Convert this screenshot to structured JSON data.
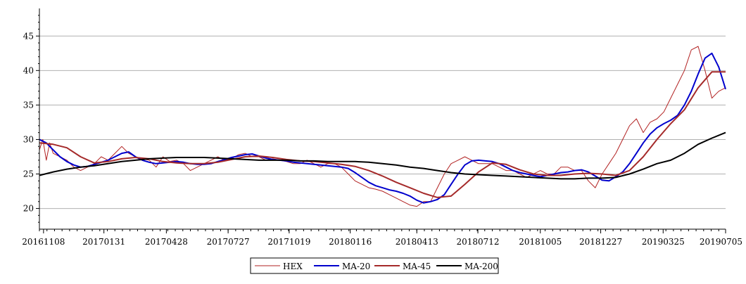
{
  "chart_data": {
    "type": "line",
    "title": "",
    "xlabel": "",
    "ylabel": "",
    "ylim": [
      17,
      49
    ],
    "yticks": [
      20,
      25,
      30,
      35,
      40,
      45
    ],
    "xlim": [
      0,
      100
    ],
    "xticks": [
      {
        "x": 0.6,
        "label": "20161108"
      },
      {
        "x": 9.4,
        "label": "20170131"
      },
      {
        "x": 18.5,
        "label": "20170428"
      },
      {
        "x": 27.5,
        "label": "20170727"
      },
      {
        "x": 36.4,
        "label": "20171019"
      },
      {
        "x": 45.3,
        "label": "20180116"
      },
      {
        "x": 55.0,
        "label": "20180413"
      },
      {
        "x": 63.9,
        "label": "20180712"
      },
      {
        "x": 73.0,
        "label": "20181005"
      },
      {
        "x": 81.8,
        "label": "20181227"
      },
      {
        "x": 90.9,
        "label": "20190325"
      },
      {
        "x": 100.0,
        "label": "20190705"
      }
    ],
    "grid": "horizontal",
    "legend_position": "bottom-center",
    "series": [
      {
        "name": "HEX",
        "color": "#b22222",
        "width": 1,
        "x": [
          0,
          0.5,
          1,
          1.5,
          2,
          3,
          4,
          5,
          6,
          7,
          8,
          9,
          10,
          11,
          12,
          13,
          14,
          15,
          16,
          17,
          18,
          19,
          20,
          21,
          22,
          23,
          24,
          25,
          26,
          27,
          28,
          29,
          30,
          31,
          32,
          33,
          34,
          35,
          36,
          37,
          38,
          39,
          40,
          41,
          42,
          43,
          44,
          45,
          46,
          47,
          48,
          49,
          50,
          51,
          52,
          53,
          54,
          55,
          56,
          57,
          58,
          59,
          60,
          61,
          62,
          63,
          64,
          65,
          66,
          67,
          68,
          69,
          70,
          71,
          72,
          73,
          74,
          75,
          76,
          77,
          78,
          79,
          80,
          81,
          82,
          83,
          84,
          85,
          86,
          87,
          88,
          89,
          90,
          91,
          92,
          93,
          94,
          95,
          96,
          97,
          98,
          99,
          100
        ],
        "values": [
          28.5,
          30,
          27,
          29.5,
          28,
          27.5,
          27,
          26,
          25.5,
          26,
          26.5,
          27.5,
          27,
          28,
          29,
          28,
          27.5,
          27.2,
          27,
          26,
          27.5,
          26.8,
          27,
          26.5,
          25.5,
          26,
          26.5,
          27,
          27.5,
          27,
          27.2,
          27.8,
          28,
          27.5,
          27.5,
          27,
          27.2,
          27,
          26.8,
          26.5,
          26.5,
          27,
          26.5,
          26,
          26.5,
          26.5,
          26,
          25,
          24,
          23.5,
          23,
          22.8,
          22.5,
          22,
          21.5,
          21,
          20.5,
          20.3,
          21,
          21,
          23,
          25,
          26.5,
          27,
          27.5,
          27,
          26.5,
          26.5,
          26.5,
          26,
          25.5,
          25.5,
          25,
          24.5,
          25,
          25.5,
          25,
          25,
          26,
          26,
          25.5,
          25.5,
          24,
          23,
          25,
          26.5,
          28,
          30,
          32,
          33,
          31,
          32.5,
          33,
          34,
          36,
          38,
          40,
          43,
          43.5,
          40,
          36,
          37,
          37.5
        ]
      },
      {
        "name": "MA-20",
        "color": "#0000cd",
        "width": 2,
        "x": [
          0,
          1,
          2,
          3,
          4,
          5,
          6,
          7,
          8,
          9,
          10,
          11,
          12,
          13,
          14,
          15,
          16,
          17,
          18,
          19,
          20,
          21,
          22,
          23,
          24,
          25,
          26,
          27,
          28,
          29,
          30,
          31,
          32,
          33,
          34,
          35,
          36,
          37,
          38,
          39,
          40,
          41,
          42,
          43,
          44,
          45,
          46,
          47,
          48,
          49,
          50,
          51,
          52,
          53,
          54,
          55,
          56,
          57,
          58,
          59,
          60,
          61,
          62,
          63,
          64,
          65,
          66,
          67,
          68,
          69,
          70,
          71,
          72,
          73,
          74,
          75,
          76,
          77,
          78,
          79,
          80,
          81,
          82,
          83,
          84,
          85,
          86,
          87,
          88,
          89,
          90,
          91,
          92,
          93,
          94,
          95,
          96,
          97,
          98,
          99,
          100
        ],
        "values": [
          30,
          29.5,
          28.5,
          27.5,
          26.8,
          26.3,
          26,
          26.1,
          26.4,
          26.7,
          27,
          27.5,
          28,
          28.2,
          27.5,
          27,
          26.7,
          26.5,
          26.6,
          26.7,
          26.8,
          26.7,
          26.5,
          26.4,
          26.4,
          26.5,
          26.8,
          27.1,
          27.4,
          27.6,
          27.8,
          27.9,
          27.6,
          27.3,
          27.1,
          27,
          26.9,
          26.7,
          26.6,
          26.5,
          26.4,
          26.3,
          26.2,
          26.1,
          26,
          25.8,
          25.2,
          24.5,
          23.8,
          23.3,
          23,
          22.7,
          22.5,
          22.2,
          21.8,
          21.2,
          20.8,
          21,
          21.3,
          22,
          23.5,
          25,
          26.3,
          26.9,
          27,
          26.9,
          26.8,
          26.5,
          26,
          25.5,
          25.2,
          25,
          24.8,
          24.6,
          24.8,
          25,
          25.2,
          25.3,
          25.5,
          25.6,
          25.3,
          24.7,
          24.1,
          24,
          24.6,
          25.3,
          26.5,
          28,
          29.5,
          30.8,
          31.7,
          32.3,
          32.8,
          33.5,
          35,
          37,
          39.5,
          41.8,
          42.5,
          40.5,
          37.3
        ]
      },
      {
        "name": "MA-45",
        "color": "#a52a2a",
        "width": 2,
        "x": [
          0,
          2,
          4,
          6,
          8,
          10,
          12,
          14,
          16,
          18,
          20,
          22,
          24,
          26,
          28,
          30,
          32,
          34,
          36,
          38,
          40,
          42,
          44,
          46,
          48,
          50,
          52,
          54,
          56,
          58,
          60,
          62,
          64,
          66,
          68,
          70,
          72,
          74,
          76,
          78,
          80,
          82,
          84,
          86,
          88,
          90,
          92,
          94,
          96,
          98,
          100
        ],
        "values": [
          29.5,
          29.3,
          28.8,
          27.5,
          26.6,
          26.8,
          27.2,
          27.4,
          27.2,
          26.8,
          26.6,
          26.5,
          26.5,
          26.7,
          27.1,
          27.5,
          27.6,
          27.4,
          27.1,
          26.9,
          26.8,
          26.6,
          26.4,
          26.1,
          25.5,
          24.7,
          23.8,
          23,
          22.2,
          21.6,
          21.8,
          23.5,
          25.3,
          26.6,
          26.4,
          25.6,
          25,
          24.8,
          24.8,
          25,
          25.1,
          25,
          24.8,
          25.5,
          27.5,
          30,
          32.3,
          34.3,
          37.5,
          39.8,
          39.8
        ]
      },
      {
        "name": "MA-200",
        "color": "#000000",
        "width": 2,
        "x": [
          0,
          2,
          4,
          6,
          8,
          10,
          12,
          14,
          16,
          18,
          20,
          22,
          24,
          26,
          28,
          30,
          32,
          34,
          36,
          38,
          40,
          42,
          44,
          46,
          48,
          50,
          52,
          54,
          56,
          58,
          60,
          62,
          64,
          66,
          68,
          70,
          72,
          74,
          76,
          78,
          80,
          82,
          84,
          86,
          88,
          90,
          92,
          94,
          96,
          98,
          100
        ],
        "values": [
          24.8,
          25.3,
          25.7,
          26,
          26.2,
          26.5,
          26.8,
          27,
          27.2,
          27.3,
          27.4,
          27.4,
          27.4,
          27.3,
          27.2,
          27.1,
          27,
          27,
          27,
          26.9,
          26.9,
          26.8,
          26.8,
          26.8,
          26.7,
          26.5,
          26.3,
          26,
          25.8,
          25.5,
          25.2,
          25,
          24.9,
          24.8,
          24.7,
          24.6,
          24.5,
          24.4,
          24.3,
          24.3,
          24.4,
          24.4,
          24.5,
          25,
          25.7,
          26.5,
          27,
          28,
          29.3,
          30.2,
          31
        ]
      }
    ]
  }
}
